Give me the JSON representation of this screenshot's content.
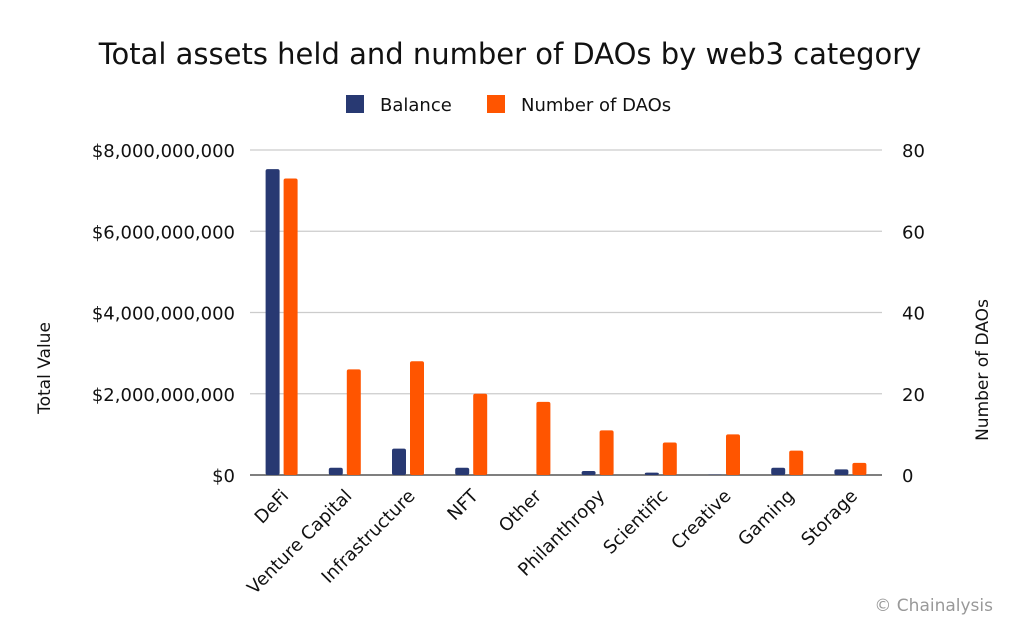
{
  "chart_data": {
    "type": "bar",
    "title": "Total assets held and number of DAOs by web3 category",
    "categories": [
      "DeFi",
      "Venture Capital",
      "Infrastructure",
      "NFT",
      "Other",
      "Philanthropy",
      "Scientific",
      "Creative",
      "Gaming",
      "Storage"
    ],
    "series": [
      {
        "name": "Balance",
        "axis": "left",
        "color": "#283972",
        "values": [
          7530000000,
          180000000,
          650000000,
          180000000,
          0,
          100000000,
          60000000,
          10000000,
          180000000,
          140000000
        ]
      },
      {
        "name": "Number of DAOs",
        "axis": "right",
        "color": "#ff5500",
        "values": [
          73,
          26,
          28,
          20,
          18,
          11,
          8,
          10,
          6,
          3
        ]
      }
    ],
    "ylabel": "Total Value",
    "y2label": "Number of DAOs",
    "ylim": [
      0,
      8000000000
    ],
    "y2lim": [
      0,
      80
    ],
    "yticks": [
      "$0",
      "$2,000,000,000",
      "$4,000,000,000",
      "$6,000,000,000",
      "$8,000,000,000"
    ],
    "y2ticks": [
      "0",
      "20",
      "40",
      "60",
      "80"
    ],
    "grid": true,
    "legend": "top"
  },
  "credit": "© Chainalysis"
}
